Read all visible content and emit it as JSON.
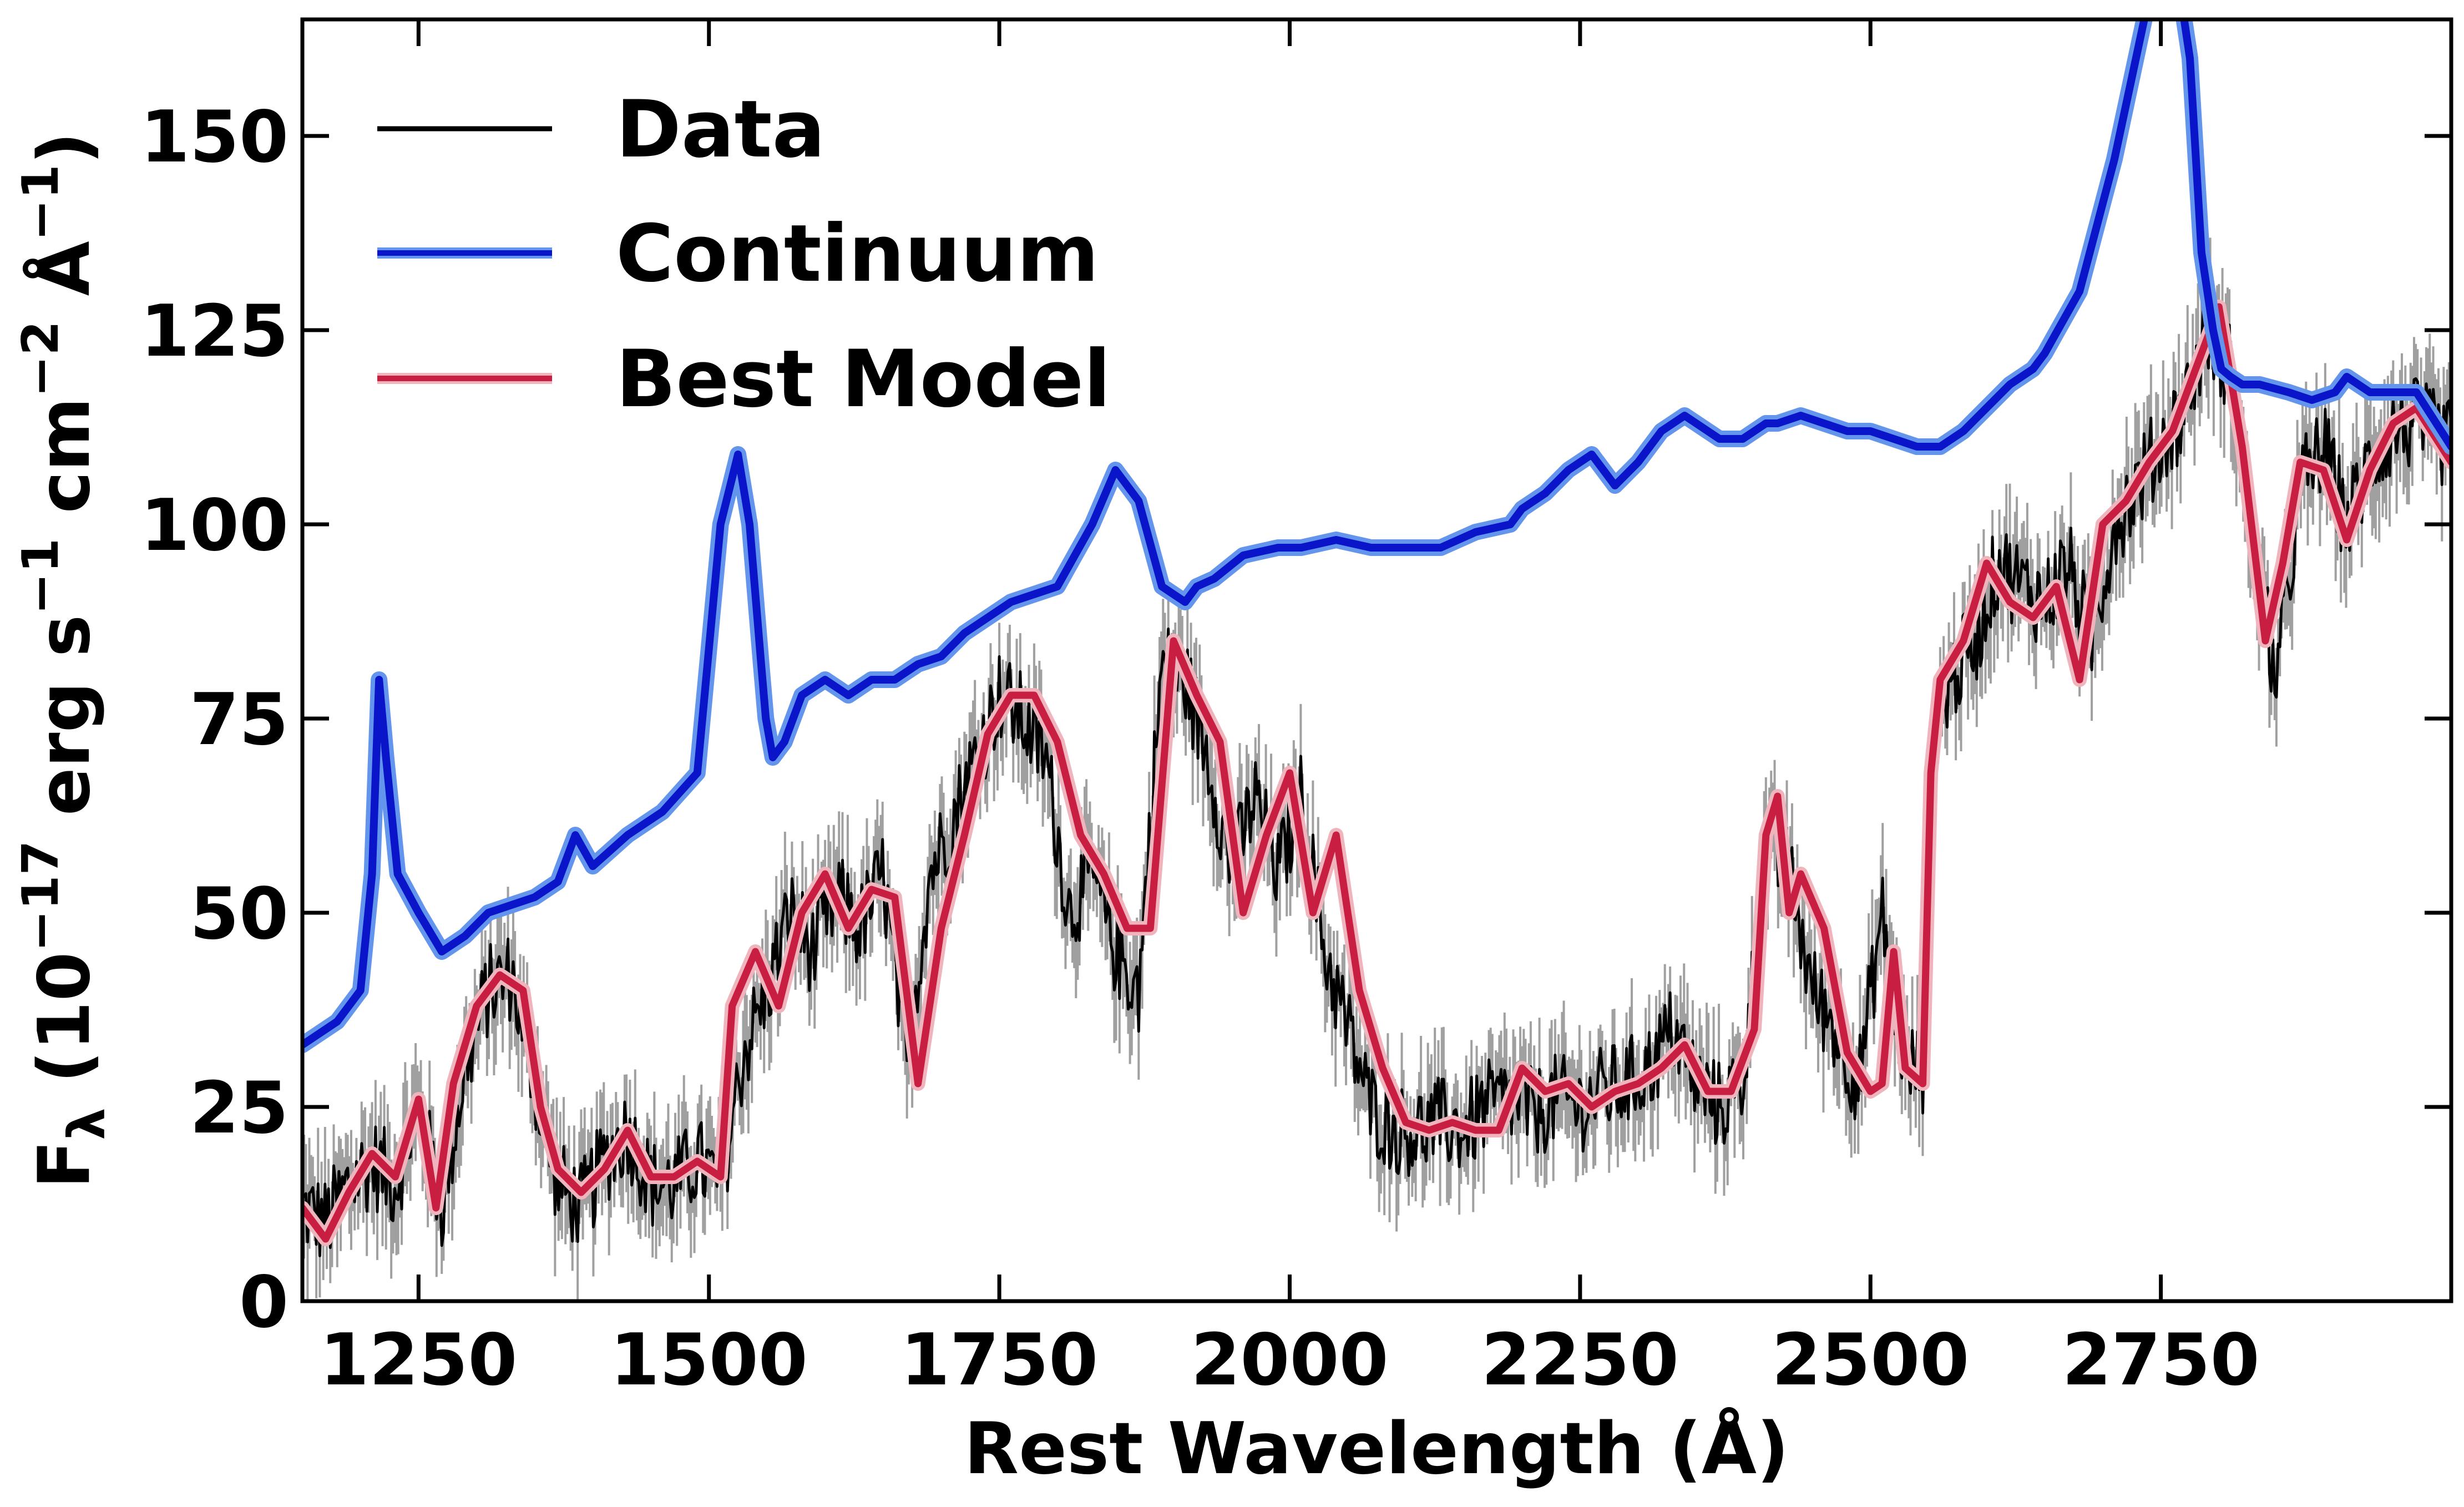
{
  "chart_data": {
    "type": "line",
    "xlabel": "Rest Wavelength (Å)",
    "ylabel": {
      "base": "F",
      "sub": "λ",
      "prefix": " (10",
      "exp1": "−17",
      "erg": " erg s",
      "exp2": "−1",
      "cm": " cm",
      "exp3": "−2",
      "ang": " Å",
      "exp4": "−1",
      "close": ")"
    },
    "xlim": [
      1150,
      3000
    ],
    "ylim": [
      0,
      165
    ],
    "xticks": [
      1250,
      1500,
      1750,
      2000,
      2250,
      2500,
      2750
    ],
    "yticks": [
      0,
      25,
      50,
      75,
      100,
      125,
      150
    ],
    "xtick_labels": [
      "1250",
      "1500",
      "1750",
      "2000",
      "2250",
      "2500",
      "2750"
    ],
    "ytick_labels": [
      "0",
      "25",
      "50",
      "75",
      "100",
      "125",
      "150"
    ],
    "legend_position": "top-left",
    "legend": [
      "Data",
      "Continuum",
      "Best Model"
    ],
    "series": [
      {
        "name": "Data",
        "color": "#000000",
        "error_color": "#a0a0a0",
        "noise": 6,
        "x": [
          1150,
          1170,
          1190,
          1210,
          1230,
          1250,
          1270,
          1290,
          1310,
          1330,
          1350,
          1370,
          1390,
          1410,
          1430,
          1450,
          1470,
          1490,
          1510,
          1530,
          1550,
          1570,
          1590,
          1610,
          1630,
          1650,
          1670,
          1690,
          1710,
          1730,
          1750,
          1770,
          1790,
          1810,
          1830,
          1850,
          1870,
          1890,
          1910,
          1930,
          1950,
          1970,
          1990,
          2010,
          2030,
          2050,
          2070,
          2090,
          2110,
          2130,
          2150,
          2170,
          2190,
          2210,
          2230,
          2250,
          2270,
          2290,
          2310,
          2330,
          2350,
          2370,
          2390,
          2410,
          2430,
          2450,
          2470,
          2490,
          2510,
          2530,
          2545,
          2555,
          2570,
          2590,
          2610,
          2630,
          2650,
          2670,
          2690,
          2710,
          2730,
          2750,
          2770,
          2790,
          2810,
          2830,
          2850,
          2870,
          2890,
          2910,
          2930,
          2950,
          2970,
          3000
        ],
        "y": [
          12,
          10,
          15,
          18,
          15,
          25,
          12,
          30,
          40,
          42,
          28,
          15,
          12,
          18,
          22,
          15,
          15,
          18,
          15,
          32,
          40,
          50,
          45,
          52,
          48,
          55,
          30,
          55,
          62,
          70,
          78,
          75,
          70,
          50,
          55,
          45,
          40,
          82,
          80,
          70,
          55,
          65,
          55,
          65,
          45,
          35,
          25,
          22,
          22,
          23,
          22,
          25,
          26,
          24,
          26,
          25,
          27,
          28,
          30,
          35,
          28,
          25,
          28,
          58,
          55,
          40,
          35,
          28,
          50,
          30,
          30,
          75,
          80,
          85,
          95,
          92,
          90,
          95,
          85,
          100,
          105,
          110,
          115,
          125,
          120,
          95,
          80,
          105,
          110,
          100,
          108,
          112,
          113,
          110
        ]
      },
      {
        "name": "Continuum",
        "color": "#0a14c8",
        "halo_color": "#6495ed",
        "x": [
          1150,
          1180,
          1200,
          1210,
          1216,
          1222,
          1232,
          1250,
          1270,
          1290,
          1310,
          1330,
          1350,
          1370,
          1385,
          1400,
          1415,
          1430,
          1460,
          1490,
          1510,
          1525,
          1535,
          1545,
          1549,
          1555,
          1565,
          1580,
          1600,
          1620,
          1640,
          1660,
          1680,
          1700,
          1720,
          1760,
          1800,
          1830,
          1850,
          1870,
          1890,
          1900,
          1910,
          1920,
          1935,
          1960,
          1990,
          2010,
          2040,
          2070,
          2100,
          2130,
          2160,
          2190,
          2200,
          2220,
          2240,
          2260,
          2280,
          2300,
          2320,
          2340,
          2370,
          2390,
          2410,
          2420,
          2440,
          2460,
          2480,
          2500,
          2520,
          2540,
          2560,
          2580,
          2600,
          2620,
          2640,
          2650,
          2680,
          2710,
          2740,
          2760,
          2775,
          2785,
          2795,
          2802,
          2810,
          2820,
          2835,
          2860,
          2880,
          2900,
          2910,
          2930,
          2950,
          2970,
          3000
        ],
        "y": [
          33,
          36,
          40,
          55,
          80,
          70,
          55,
          50,
          45,
          47,
          50,
          51,
          52,
          54,
          60,
          56,
          58,
          60,
          63,
          68,
          100,
          109,
          100,
          82,
          75,
          70,
          72,
          78,
          80,
          78,
          80,
          80,
          82,
          83,
          86,
          90,
          92,
          100,
          107,
          103,
          92,
          91,
          90,
          92,
          93,
          96,
          97,
          97,
          98,
          97,
          97,
          97,
          99,
          100,
          102,
          104,
          107,
          109,
          105,
          108,
          112,
          114,
          111,
          111,
          113,
          113,
          114,
          113,
          112,
          112,
          111,
          110,
          110,
          112,
          115,
          118,
          120,
          122,
          130,
          147,
          168,
          175,
          160,
          135,
          125,
          120,
          119,
          118,
          118,
          117,
          116,
          117,
          119,
          117,
          117,
          117,
          110
        ]
      },
      {
        "name": "Best Model",
        "color": "#c81e41",
        "halo_color": "#f0b4bc",
        "x": [
          1150,
          1170,
          1190,
          1210,
          1230,
          1250,
          1265,
          1280,
          1300,
          1320,
          1340,
          1355,
          1370,
          1390,
          1410,
          1430,
          1450,
          1470,
          1490,
          1510,
          1520,
          1540,
          1560,
          1580,
          1600,
          1620,
          1640,
          1660,
          1680,
          1700,
          1720,
          1740,
          1760,
          1780,
          1800,
          1820,
          1840,
          1860,
          1880,
          1900,
          1920,
          1940,
          1960,
          1980,
          2000,
          2020,
          2040,
          2060,
          2080,
          2100,
          2120,
          2140,
          2160,
          2180,
          2200,
          2220,
          2240,
          2260,
          2280,
          2300,
          2320,
          2340,
          2360,
          2380,
          2400,
          2410,
          2420,
          2430,
          2440,
          2460,
          2480,
          2500,
          2510,
          2520,
          2530,
          2545,
          2552,
          2560,
          2580,
          2600,
          2620,
          2640,
          2660,
          2680,
          2700,
          2720,
          2740,
          2760,
          2780,
          2800,
          2820,
          2840,
          2855,
          2870,
          2890,
          2910,
          2930,
          2950,
          2970,
          3000
        ],
        "y": [
          12,
          8,
          14,
          19,
          16,
          26,
          12,
          28,
          38,
          42,
          40,
          25,
          17,
          14,
          17,
          22,
          16,
          16,
          18,
          16,
          38,
          45,
          38,
          50,
          55,
          48,
          53,
          52,
          28,
          48,
          60,
          73,
          78,
          78,
          72,
          60,
          55,
          48,
          48,
          85,
          78,
          72,
          50,
          60,
          68,
          50,
          60,
          40,
          30,
          23,
          22,
          23,
          22,
          22,
          30,
          27,
          28,
          25,
          27,
          28,
          30,
          33,
          27,
          27,
          35,
          60,
          65,
          50,
          55,
          48,
          32,
          27,
          28,
          45,
          30,
          28,
          68,
          80,
          85,
          95,
          90,
          88,
          92,
          80,
          100,
          103,
          108,
          112,
          120,
          128,
          110,
          85,
          95,
          108,
          107,
          98,
          107,
          113,
          115,
          108
        ]
      }
    ]
  }
}
